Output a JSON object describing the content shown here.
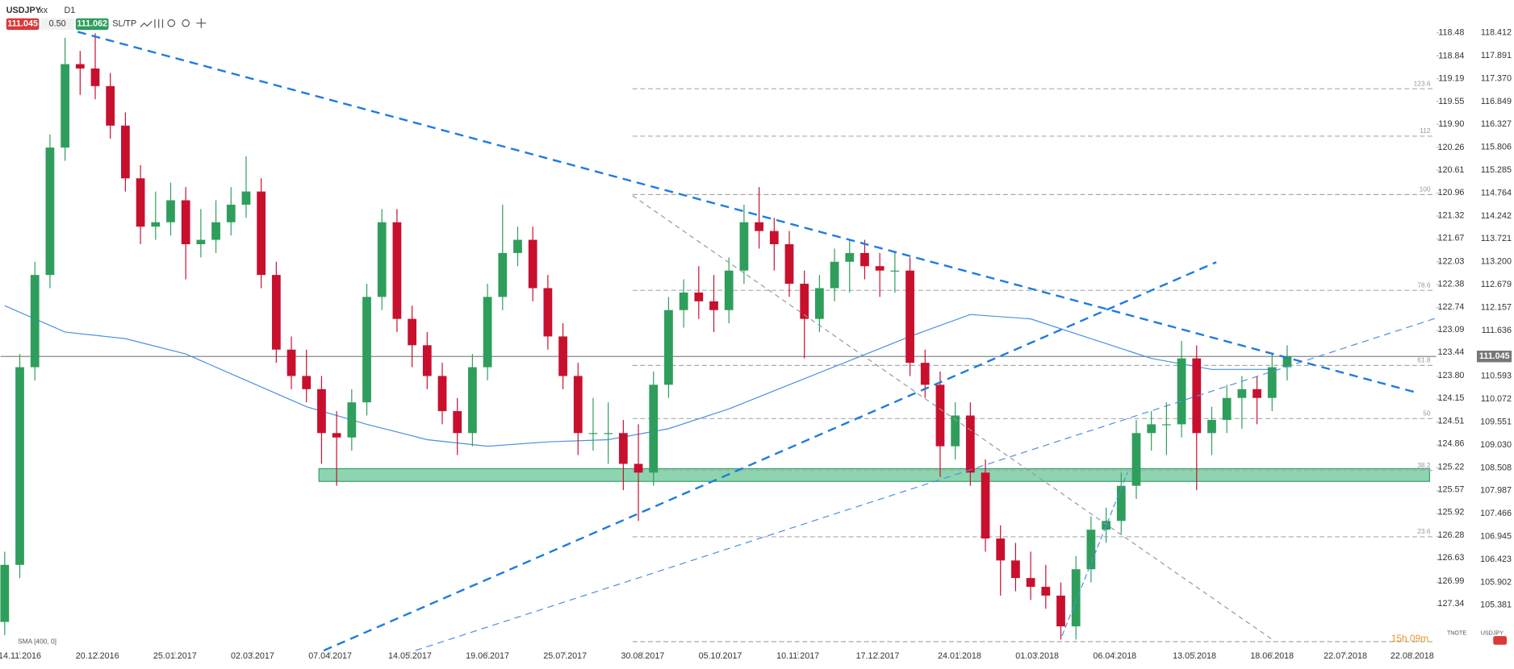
{
  "header": {
    "symbol": "USDJPY",
    "flag": "xx",
    "timeframe": "D1",
    "sell": 111.045,
    "spread": "0.50",
    "buy": 111.062,
    "sltp": "SL/TP"
  },
  "chart_data": {
    "type": "candlestick",
    "name": "USDJPY",
    "up_color": "#2f9e5c",
    "down_color": "#c8102e",
    "ylim": [
      104.24,
      119.16
    ],
    "yticks": [
      118.412,
      117.891,
      {
        "value": 117.37,
        "label": "117.370"
      },
      116.849,
      116.327,
      115.806,
      115.285,
      114.764,
      114.242,
      113.721,
      {
        "value": 113.2,
        "label": "113.200"
      },
      112.679,
      112.157,
      111.636,
      110.593,
      110.072,
      109.551,
      {
        "value": 109.03,
        "label": "109.030"
      },
      108.508,
      107.987,
      107.466,
      106.945,
      106.423,
      105.902,
      105.381
    ],
    "y2name": "TNOTE",
    "y2lim": [
      128.14,
      117.97
    ],
    "y2ticks": [
      118.48,
      118.84,
      119.19,
      119.55,
      {
        "value": 119.9,
        "label": "119.90"
      },
      120.26,
      120.61,
      120.96,
      121.32,
      121.67,
      122.03,
      122.38,
      122.74,
      123.09,
      123.44,
      {
        "value": 123.8,
        "label": "123.80"
      },
      124.15,
      124.51,
      124.86,
      125.22,
      125.57,
      125.92,
      126.28,
      126.63,
      126.99,
      127.34
    ],
    "xticks": [
      "14.11.2016",
      "20.12.2016",
      "25.01.2017",
      "02.03.2017",
      "07.04.2017",
      "14.05.2017",
      "19.06.2017",
      "25.07.2017",
      "30.08.2017",
      "05.10.2017",
      "10.11.2017",
      "17.12.2017",
      "24.01.2018",
      "01.03.2018",
      "06.04.2018",
      "13.05.2018",
      "18.06.2018",
      "22.07.2018",
      "22.08.2018"
    ],
    "x": [
      "07.11.2016",
      "14.11.2016",
      "21.11.2016",
      "28.11.2016",
      "05.12.2016",
      "12.12.2016",
      "19.12.2016",
      "26.12.2016",
      "02.01.2017",
      "09.01.2017",
      "16.01.2017",
      "23.01.2017",
      "30.01.2017",
      "06.02.2017",
      "13.02.2017",
      "20.02.2017",
      "27.02.2017",
      "06.03.2017",
      "13.03.2017",
      "20.03.2017",
      "27.03.2017",
      "03.04.2017",
      "10.04.2017",
      "17.04.2017",
      "24.04.2017",
      "01.05.2017",
      "08.05.2017",
      "15.05.2017",
      "22.05.2017",
      "29.05.2017",
      "05.06.2017",
      "12.06.2017",
      "19.06.2017",
      "26.06.2017",
      "03.07.2017",
      "10.07.2017",
      "17.07.2017",
      "24.07.2017",
      "31.07.2017",
      "07.08.2017",
      "14.08.2017",
      "21.08.2017",
      "28.08.2017",
      "04.09.2017",
      "11.09.2017",
      "18.09.2017",
      "25.09.2017",
      "02.10.2017",
      "09.10.2017",
      "16.10.2017",
      "23.10.2017",
      "30.10.2017",
      "06.11.2017",
      "13.11.2017",
      "20.11.2017",
      "27.11.2017",
      "04.12.2017",
      "11.12.2017",
      "18.12.2017",
      "25.12.2017",
      "01.01.2018",
      "08.01.2018",
      "15.01.2018",
      "22.01.2018",
      "29.01.2018",
      "05.02.2018",
      "12.02.2018",
      "19.02.2018",
      "26.02.2018",
      "05.03.2018",
      "12.03.2018",
      "19.03.2018",
      "26.03.2018",
      "02.04.2018",
      "09.04.2018",
      "16.04.2018",
      "23.04.2018",
      "30.04.2018",
      "07.05.2018",
      "14.05.2018",
      "21.05.2018",
      "28.05.2018",
      "04.06.2018",
      "11.06.2018",
      "18.06.2018",
      "25.06.2018"
    ],
    "ohlc": [
      [
        105.0,
        106.6,
        104.7,
        106.3
      ],
      [
        106.3,
        111.1,
        106.0,
        110.8
      ],
      [
        110.8,
        113.2,
        110.5,
        112.9
      ],
      [
        112.9,
        116.1,
        112.6,
        115.8
      ],
      [
        115.8,
        118.3,
        115.5,
        117.7
      ],
      [
        117.7,
        118.0,
        117.0,
        117.6
      ],
      [
        117.6,
        118.4,
        116.9,
        117.2
      ],
      [
        117.2,
        117.5,
        116.0,
        116.3
      ],
      [
        116.3,
        116.6,
        114.8,
        115.1
      ],
      [
        115.1,
        115.4,
        113.6,
        114.0
      ],
      [
        114.0,
        114.8,
        113.7,
        114.1
      ],
      [
        114.1,
        115.0,
        113.8,
        114.6
      ],
      [
        114.6,
        114.9,
        112.8,
        113.6
      ],
      [
        113.6,
        114.4,
        113.3,
        113.7
      ],
      [
        113.7,
        114.6,
        113.4,
        114.1
      ],
      [
        114.1,
        114.9,
        113.8,
        114.5
      ],
      [
        114.5,
        115.6,
        114.2,
        114.8
      ],
      [
        114.8,
        115.1,
        112.6,
        112.9
      ],
      [
        112.9,
        113.2,
        110.9,
        111.2
      ],
      [
        111.2,
        111.5,
        110.3,
        110.6
      ],
      [
        110.6,
        111.2,
        110.0,
        110.3
      ],
      [
        110.3,
        110.6,
        108.6,
        109.3
      ],
      [
        109.3,
        109.8,
        108.1,
        109.2
      ],
      [
        109.2,
        110.3,
        108.9,
        110.0
      ],
      [
        110.0,
        112.7,
        109.7,
        112.4
      ],
      [
        112.4,
        114.4,
        112.1,
        114.1
      ],
      [
        114.1,
        114.4,
        111.6,
        111.9
      ],
      [
        111.9,
        112.2,
        110.8,
        111.3
      ],
      [
        111.3,
        111.6,
        110.3,
        110.6
      ],
      [
        110.6,
        110.9,
        109.5,
        109.8
      ],
      [
        109.8,
        110.1,
        108.8,
        109.3
      ],
      [
        109.3,
        111.1,
        109.0,
        110.8
      ],
      [
        110.8,
        112.7,
        110.5,
        112.4
      ],
      [
        112.4,
        114.5,
        112.1,
        113.4
      ],
      [
        113.4,
        114.0,
        113.1,
        113.7
      ],
      [
        113.7,
        114.0,
        112.3,
        112.6
      ],
      [
        112.6,
        112.9,
        111.2,
        111.5
      ],
      [
        111.5,
        111.8,
        110.3,
        110.6
      ],
      [
        110.6,
        110.9,
        108.8,
        109.3
      ],
      [
        109.3,
        110.1,
        108.9,
        109.3
      ],
      [
        109.3,
        110.0,
        108.6,
        109.3
      ],
      [
        109.3,
        109.6,
        108.0,
        108.6
      ],
      [
        108.6,
        109.5,
        107.3,
        108.4
      ],
      [
        108.4,
        110.7,
        108.1,
        110.4
      ],
      [
        110.4,
        112.4,
        110.1,
        112.1
      ],
      [
        112.1,
        112.8,
        111.7,
        112.5
      ],
      [
        112.5,
        113.1,
        111.9,
        112.3
      ],
      [
        112.3,
        112.9,
        111.6,
        112.1
      ],
      [
        112.1,
        113.3,
        111.8,
        113.0
      ],
      [
        113.0,
        114.5,
        112.7,
        114.1
      ],
      [
        114.1,
        114.9,
        113.5,
        113.9
      ],
      [
        113.9,
        114.2,
        113.0,
        113.6
      ],
      [
        113.6,
        113.9,
        112.4,
        112.7
      ],
      [
        112.7,
        113.0,
        111.0,
        111.9
      ],
      [
        111.9,
        112.9,
        111.6,
        112.6
      ],
      [
        112.6,
        113.5,
        112.3,
        113.2
      ],
      [
        113.2,
        113.7,
        112.5,
        113.4
      ],
      [
        113.4,
        113.7,
        112.8,
        113.1
      ],
      [
        113.1,
        113.4,
        112.4,
        113.0
      ],
      [
        113.0,
        113.4,
        112.5,
        113.0
      ],
      [
        113.0,
        113.3,
        110.6,
        110.9
      ],
      [
        110.9,
        111.2,
        110.1,
        110.4
      ],
      [
        110.4,
        110.7,
        108.3,
        109.0
      ],
      [
        109.0,
        110.0,
        108.7,
        109.7
      ],
      [
        109.7,
        110.0,
        108.1,
        108.4
      ],
      [
        108.4,
        108.7,
        106.6,
        106.9
      ],
      [
        106.9,
        107.2,
        105.6,
        106.4
      ],
      [
        106.4,
        106.8,
        105.7,
        106.0
      ],
      [
        106.0,
        106.6,
        105.5,
        105.8
      ],
      [
        105.8,
        106.3,
        105.3,
        105.6
      ],
      [
        105.6,
        105.9,
        104.6,
        104.9
      ],
      [
        104.9,
        106.5,
        104.6,
        106.2
      ],
      [
        106.2,
        107.4,
        105.9,
        107.1
      ],
      [
        107.1,
        107.6,
        106.8,
        107.3
      ],
      [
        107.3,
        108.4,
        107.0,
        108.1
      ],
      [
        108.1,
        109.6,
        107.8,
        109.3
      ],
      [
        109.3,
        109.8,
        108.9,
        109.5
      ],
      [
        109.5,
        110.0,
        108.8,
        109.5
      ],
      [
        109.5,
        111.4,
        109.2,
        111.0
      ],
      [
        111.0,
        111.3,
        108.0,
        109.3
      ],
      [
        109.3,
        109.9,
        108.8,
        109.6
      ],
      [
        109.6,
        110.4,
        109.3,
        110.1
      ],
      [
        110.1,
        110.6,
        109.4,
        110.3
      ],
      [
        110.3,
        110.6,
        109.5,
        110.1
      ],
      [
        110.1,
        111.1,
        109.8,
        110.8
      ],
      [
        110.8,
        111.3,
        110.5,
        111.05
      ]
    ],
    "sma": {
      "name": "SMA [400, 0]",
      "color": "#4a90e2",
      "x": [
        "07.11.2016",
        "05.12.2016",
        "02.01.2017",
        "30.01.2017",
        "27.02.2017",
        "27.03.2017",
        "24.04.2017",
        "22.05.2017",
        "19.06.2017",
        "17.07.2017",
        "14.08.2017",
        "11.09.2017",
        "09.10.2017",
        "06.11.2017",
        "04.12.2017",
        "01.01.2018",
        "29.01.2018",
        "26.02.2018",
        "26.03.2018",
        "23.04.2018",
        "21.05.2018",
        "18.06.2018"
      ],
      "values": [
        112.2,
        111.6,
        111.45,
        111.1,
        110.5,
        109.9,
        109.5,
        109.15,
        109.0,
        109.1,
        109.15,
        109.4,
        109.85,
        110.4,
        110.95,
        111.5,
        112.0,
        111.9,
        111.45,
        111.0,
        110.75,
        110.75
      ]
    },
    "fib_levels": [
      {
        "level": 123.6,
        "price": 117.14
      },
      {
        "level": 112.0,
        "price": 116.06
      },
      {
        "level": 100.0,
        "price": 114.73
      },
      {
        "level": 78.6,
        "price": 112.55
      },
      {
        "level": 61.8,
        "price": 110.84
      },
      {
        "level": 50.0,
        "price": 109.63
      },
      {
        "level": 38.2,
        "price": 108.45
      },
      {
        "level": 23.6,
        "price": 106.94
      },
      {
        "price": 104.55
      }
    ],
    "zone": [
      108.2,
      108.49
    ],
    "countdown": "15h 09m",
    "legend": [
      "TNOTE",
      "USDJPY"
    ]
  }
}
